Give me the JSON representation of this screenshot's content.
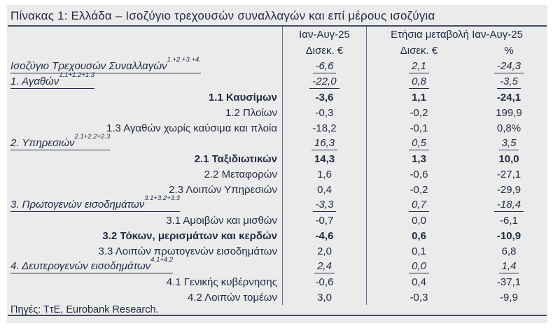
{
  "title": "Πίνακας 1: Ελλάδα – Ισοζύγιο τρεχουσών συναλλαγών και επί μέρους ισοζύγια",
  "header": {
    "col_period": "Ιαν-Αυγ-25",
    "col_period_unit": "Δισεκ. €",
    "col_change_group": "Ετήσια μεταβολή Ιαν-Αυγ-25",
    "col_change_unit": "Δισεκ. €",
    "col_change_pct": "%"
  },
  "table": {
    "rows": [
      {
        "label": "Ισοζύγιο Τρεχουσών Συναλλαγών",
        "sup": "1.+2.+3.+4.",
        "style": "main",
        "values": [
          "-6,6",
          "2,1",
          "-24,3"
        ]
      },
      {
        "label": "1. Αγαθών",
        "sup": "1.1+1.2+1.3",
        "style": "main",
        "values": [
          "-22,0",
          "0,8",
          "-3,5"
        ]
      },
      {
        "label": "1.1 Καυσίμων",
        "sup": "",
        "style": "bold",
        "values": [
          "-3,6",
          "1,1",
          "-24,1"
        ]
      },
      {
        "label": "1.2 Πλοίων",
        "sup": "",
        "style": "normal",
        "values": [
          "-0,3",
          "-0,2",
          "199,9"
        ]
      },
      {
        "label": "1.3 Αγαθών χωρίς καύσιμα και πλοία",
        "sup": "",
        "style": "normal",
        "values": [
          "-18,2",
          "-0,1",
          "0,8%"
        ]
      },
      {
        "label": "2. Υπηρεσιών",
        "sup": "2.1+2.2+2.3",
        "style": "main",
        "values": [
          "16,3",
          "0,5",
          "3,5"
        ]
      },
      {
        "label": "2.1 Ταξιδιωτικών",
        "sup": "",
        "style": "bold",
        "values": [
          "14,3",
          "1,3",
          "10,0"
        ]
      },
      {
        "label": "2.2 Μεταφορών",
        "sup": "",
        "style": "normal",
        "values": [
          "1,6",
          "-0,6",
          "-27,1"
        ]
      },
      {
        "label": "2.3 Λοιπών Υπηρεσιών",
        "sup": "",
        "style": "normal",
        "values": [
          "0,4",
          "-0,2",
          "-29,9"
        ]
      },
      {
        "label": "3. Πρωτογενών εισοδημάτων",
        "sup": "3.1+3.2+3.3",
        "style": "main",
        "values": [
          "-3,3",
          "0,7",
          "-18,4"
        ]
      },
      {
        "label": "3.1 Αμοιβών και μισθών",
        "sup": "",
        "style": "normal",
        "values": [
          "-0,7",
          "0,0",
          "-6,1"
        ]
      },
      {
        "label": "3.2 Τόκων, μερισμάτων και κερδών",
        "sup": "",
        "style": "bold",
        "values": [
          "-4,6",
          "0,6",
          "-10,9"
        ]
      },
      {
        "label": "3.3 Λοιπών πρωτογενών εισοδημάτων",
        "sup": "",
        "style": "normal",
        "values": [
          "2,0",
          "0,1",
          "6,8"
        ]
      },
      {
        "label": "4. Δευτερογενών εισοδημάτων",
        "sup": "4.1+4.2",
        "style": "main",
        "values": [
          "2,4",
          "0,0",
          "1,4"
        ]
      },
      {
        "label": "4.1 Γενικής κυβέρνησης",
        "sup": "",
        "style": "normal",
        "values": [
          "-0,6",
          "0,4",
          "-37,1"
        ]
      },
      {
        "label": "4.2 Λοιπών τομέων",
        "sup": "",
        "style": "normal",
        "values": [
          "3,0",
          "-0,3",
          "-9,9"
        ]
      }
    ]
  },
  "footer": {
    "sources": "Πηγές: ΤτΕ, Eurobank Research."
  },
  "colors": {
    "text": "#212c42",
    "panel_bg": "#ebebeb",
    "rule": "#434b5c",
    "divider": "#666c78",
    "page_bg": "#ffffff"
  }
}
